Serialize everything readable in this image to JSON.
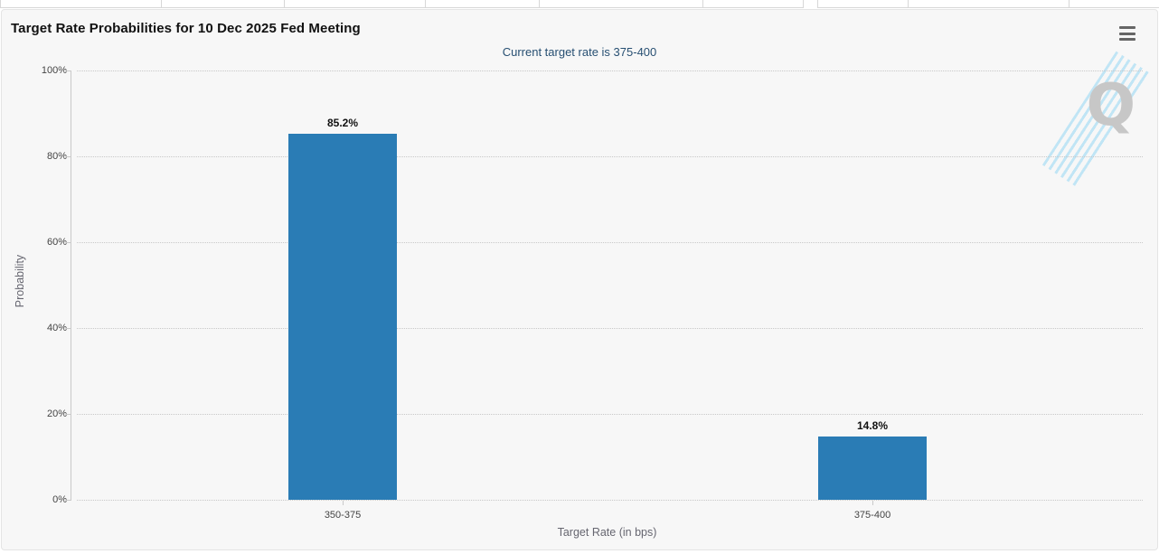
{
  "tab_strip": {
    "note": "partially visible row of meeting tabs cut off at top edge",
    "group1_cells": 6,
    "group2_cells": 3
  },
  "chart": {
    "title": "Target Rate Probabilities for 10 Dec 2025 Fed Meeting",
    "subtitle": "Current target rate is 375-400",
    "menu_icon": "hamburger-icon",
    "watermark": "Q"
  },
  "chart_data": {
    "type": "bar",
    "title": "Target Rate Probabilities for 10 Dec 2025 Fed Meeting",
    "subtitle": "Current target rate is 375-400",
    "categories": [
      "350-375",
      "375-400"
    ],
    "values": [
      85.2,
      14.8
    ],
    "data_labels": [
      "85.2%",
      "14.8%"
    ],
    "xlabel": "Target Rate (in bps)",
    "ylabel": "Probability",
    "ylim": [
      0,
      100
    ],
    "yticks_top_down": [
      "100%",
      "80%",
      "60%",
      "40%",
      "20%",
      "0%"
    ],
    "grid": "horizontal dotted lines at 20% intervals",
    "legend": "none",
    "bar_color": "#2a7cb5"
  },
  "colors": {
    "panel_background": "#f7f7f7",
    "bar": "#2a7cb5",
    "subtitle_text": "#274f72",
    "axis_line": "#c9c9c9",
    "watermark_stripe": "#b7e2f5"
  }
}
